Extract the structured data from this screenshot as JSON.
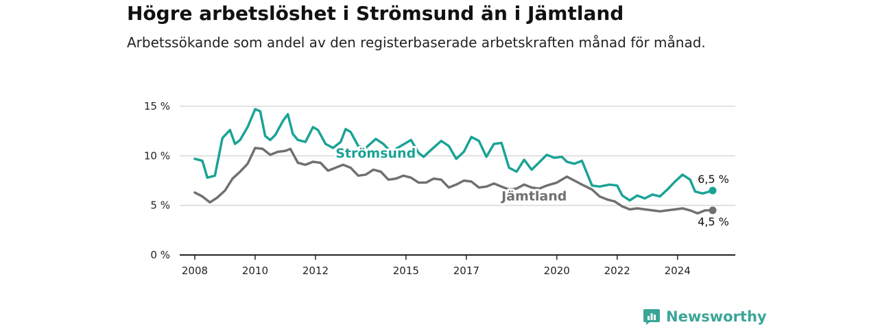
{
  "header": {
    "title": "Högre arbetslöshet i Strömsund än i Jämtland",
    "subtitle": "Arbetssökande som andel av den registerbaserade arbetskraften månad för månad."
  },
  "brand": {
    "name": "Newsworthy",
    "color": "#3aa597"
  },
  "colors": {
    "stromsund": "#1aa395",
    "jamtland": "#707070",
    "grid": "#d8d8d8",
    "axis": "#222222"
  },
  "chart_data": {
    "type": "line",
    "title": "Högre arbetslöshet i Strömsund än i Jämtland",
    "subtitle": "Arbetssökande som andel av den registerbaserade arbetskraften månad för månad.",
    "xlabel": "",
    "ylabel": "",
    "xlim": [
      "2007-07",
      "2025-12"
    ],
    "ylim": [
      0,
      15
    ],
    "grid": true,
    "y_ticks": [
      {
        "value": 0,
        "label": "0 %"
      },
      {
        "value": 5,
        "label": "5 %"
      },
      {
        "value": 10,
        "label": "10 %"
      },
      {
        "value": 15,
        "label": "15 %"
      }
    ],
    "x_ticks": [
      {
        "value": "2008-01",
        "label": "2008"
      },
      {
        "value": "2010-01",
        "label": "2010"
      },
      {
        "value": "2012-01",
        "label": "2012"
      },
      {
        "value": "2015-01",
        "label": "2015"
      },
      {
        "value": "2017-01",
        "label": "2017"
      },
      {
        "value": "2020-01",
        "label": "2020"
      },
      {
        "value": "2022-01",
        "label": "2022"
      },
      {
        "value": "2024-01",
        "label": "2024"
      }
    ],
    "series": [
      {
        "name": "Strömsund",
        "color": "#1aa395",
        "end_label": "6,5 %",
        "points": [
          [
            "2008-01",
            9.7
          ],
          [
            "2008-04",
            9.5
          ],
          [
            "2008-06",
            7.8
          ],
          [
            "2008-09",
            8.0
          ],
          [
            "2008-12",
            11.8
          ],
          [
            "2009-03",
            12.6
          ],
          [
            "2009-05",
            11.2
          ],
          [
            "2009-07",
            11.6
          ],
          [
            "2009-10",
            12.9
          ],
          [
            "2010-01",
            14.7
          ],
          [
            "2010-03",
            14.5
          ],
          [
            "2010-05",
            12.0
          ],
          [
            "2010-07",
            11.6
          ],
          [
            "2010-09",
            12.1
          ],
          [
            "2010-12",
            13.5
          ],
          [
            "2011-02",
            14.2
          ],
          [
            "2011-04",
            12.2
          ],
          [
            "2011-06",
            11.6
          ],
          [
            "2011-09",
            11.4
          ],
          [
            "2011-12",
            12.9
          ],
          [
            "2012-02",
            12.6
          ],
          [
            "2012-05",
            11.2
          ],
          [
            "2012-08",
            10.8
          ],
          [
            "2012-11",
            11.4
          ],
          [
            "2013-01",
            12.7
          ],
          [
            "2013-03",
            12.4
          ],
          [
            "2013-06",
            11.0
          ],
          [
            "2013-09",
            10.8
          ],
          [
            "2014-01",
            11.7
          ],
          [
            "2014-04",
            11.2
          ],
          [
            "2014-07",
            10.4
          ],
          [
            "2014-11",
            11.0
          ],
          [
            "2015-03",
            11.6
          ],
          [
            "2015-06",
            10.3
          ],
          [
            "2015-08",
            9.9
          ],
          [
            "2015-11",
            10.6
          ],
          [
            "2016-03",
            11.5
          ],
          [
            "2016-06",
            11.0
          ],
          [
            "2016-09",
            9.7
          ],
          [
            "2016-12",
            10.4
          ],
          [
            "2017-03",
            11.9
          ],
          [
            "2017-06",
            11.5
          ],
          [
            "2017-09",
            9.9
          ],
          [
            "2017-12",
            11.2
          ],
          [
            "2018-03",
            11.3
          ],
          [
            "2018-06",
            8.8
          ],
          [
            "2018-09",
            8.4
          ],
          [
            "2018-12",
            9.6
          ],
          [
            "2019-03",
            8.6
          ],
          [
            "2019-05",
            9.1
          ],
          [
            "2019-09",
            10.1
          ],
          [
            "2019-12",
            9.8
          ],
          [
            "2020-03",
            9.9
          ],
          [
            "2020-05",
            9.4
          ],
          [
            "2020-08",
            9.2
          ],
          [
            "2020-11",
            9.5
          ],
          [
            "2021-03",
            7.0
          ],
          [
            "2021-06",
            6.9
          ],
          [
            "2021-10",
            7.1
          ],
          [
            "2022-01",
            7.0
          ],
          [
            "2022-03",
            6.0
          ],
          [
            "2022-06",
            5.5
          ],
          [
            "2022-09",
            6.0
          ],
          [
            "2022-12",
            5.7
          ],
          [
            "2023-03",
            6.1
          ],
          [
            "2023-06",
            5.9
          ],
          [
            "2023-09",
            6.6
          ],
          [
            "2023-12",
            7.4
          ],
          [
            "2024-03",
            8.1
          ],
          [
            "2024-06",
            7.6
          ],
          [
            "2024-08",
            6.4
          ],
          [
            "2024-11",
            6.2
          ],
          [
            "2025-03",
            6.5
          ]
        ]
      },
      {
        "name": "Jämtland",
        "color": "#707070",
        "end_label": "4,5 %",
        "points": [
          [
            "2008-01",
            6.3
          ],
          [
            "2008-04",
            5.9
          ],
          [
            "2008-07",
            5.3
          ],
          [
            "2008-10",
            5.8
          ],
          [
            "2009-01",
            6.5
          ],
          [
            "2009-04",
            7.7
          ],
          [
            "2009-07",
            8.4
          ],
          [
            "2009-10",
            9.2
          ],
          [
            "2010-01",
            10.8
          ],
          [
            "2010-04",
            10.7
          ],
          [
            "2010-07",
            10.1
          ],
          [
            "2010-10",
            10.4
          ],
          [
            "2011-01",
            10.5
          ],
          [
            "2011-03",
            10.7
          ],
          [
            "2011-06",
            9.3
          ],
          [
            "2011-09",
            9.1
          ],
          [
            "2011-12",
            9.4
          ],
          [
            "2012-03",
            9.3
          ],
          [
            "2012-06",
            8.5
          ],
          [
            "2012-09",
            8.8
          ],
          [
            "2012-12",
            9.1
          ],
          [
            "2013-03",
            8.8
          ],
          [
            "2013-06",
            8.0
          ],
          [
            "2013-09",
            8.1
          ],
          [
            "2013-12",
            8.6
          ],
          [
            "2014-03",
            8.4
          ],
          [
            "2014-06",
            7.6
          ],
          [
            "2014-09",
            7.7
          ],
          [
            "2014-12",
            8.0
          ],
          [
            "2015-03",
            7.8
          ],
          [
            "2015-06",
            7.3
          ],
          [
            "2015-09",
            7.3
          ],
          [
            "2015-12",
            7.7
          ],
          [
            "2016-03",
            7.6
          ],
          [
            "2016-06",
            6.8
          ],
          [
            "2016-09",
            7.1
          ],
          [
            "2016-12",
            7.5
          ],
          [
            "2017-03",
            7.4
          ],
          [
            "2017-06",
            6.8
          ],
          [
            "2017-09",
            6.9
          ],
          [
            "2017-12",
            7.2
          ],
          [
            "2018-03",
            6.9
          ],
          [
            "2018-06",
            6.6
          ],
          [
            "2018-09",
            6.7
          ],
          [
            "2018-12",
            7.1
          ],
          [
            "2019-03",
            6.8
          ],
          [
            "2019-06",
            6.7
          ],
          [
            "2019-09",
            7.0
          ],
          [
            "2020-01",
            7.3
          ],
          [
            "2020-05",
            7.9
          ],
          [
            "2020-08",
            7.5
          ],
          [
            "2020-11",
            7.1
          ],
          [
            "2021-03",
            6.6
          ],
          [
            "2021-06",
            5.9
          ],
          [
            "2021-09",
            5.6
          ],
          [
            "2021-12",
            5.4
          ],
          [
            "2022-03",
            4.9
          ],
          [
            "2022-06",
            4.6
          ],
          [
            "2022-09",
            4.7
          ],
          [
            "2022-12",
            4.6
          ],
          [
            "2023-03",
            4.5
          ],
          [
            "2023-06",
            4.4
          ],
          [
            "2023-09",
            4.5
          ],
          [
            "2023-12",
            4.6
          ],
          [
            "2024-03",
            4.7
          ],
          [
            "2024-06",
            4.5
          ],
          [
            "2024-09",
            4.2
          ],
          [
            "2024-12",
            4.5
          ],
          [
            "2025-03",
            4.5
          ]
        ]
      }
    ]
  }
}
